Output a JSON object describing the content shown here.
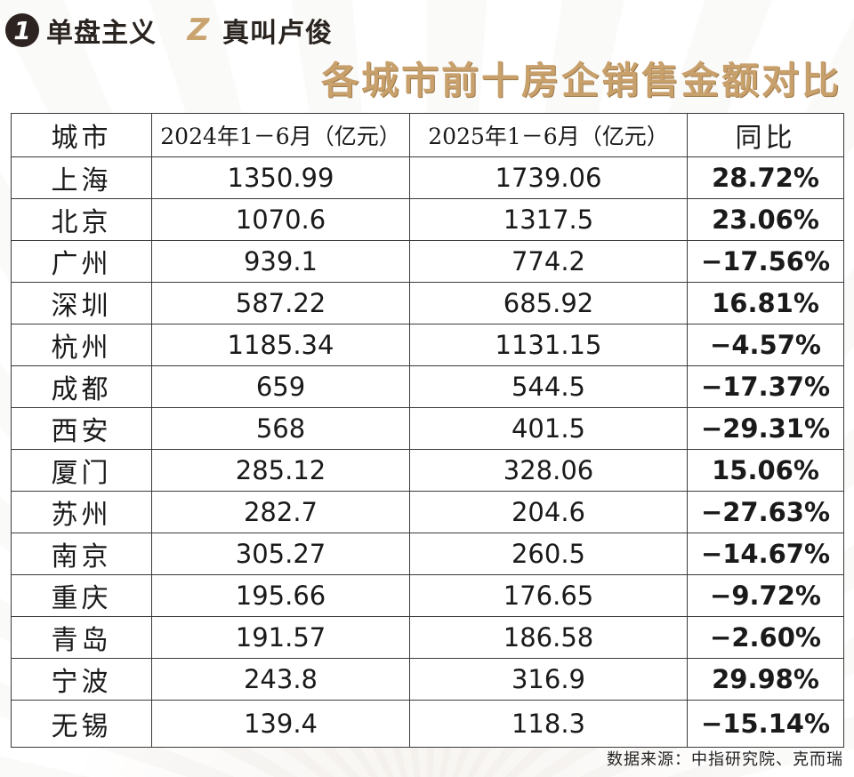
{
  "brand": {
    "logo1": {
      "badge": "1",
      "text": "单盘主义"
    },
    "logo2": {
      "badge": "Z",
      "text": "真叫卢俊"
    }
  },
  "title": "各城市前十房企销售金额对比",
  "table": {
    "headers": [
      "城市",
      "2024年1－6月（亿元）",
      "2025年1－6月（亿元）",
      "同比"
    ],
    "rows": [
      {
        "city": "上海",
        "v2024": "1350.99",
        "v2025": "1739.06",
        "yoy": "28.72%"
      },
      {
        "city": "北京",
        "v2024": "1070.6",
        "v2025": "1317.5",
        "yoy": "23.06%"
      },
      {
        "city": "广州",
        "v2024": "939.1",
        "v2025": "774.2",
        "yoy": "−17.56%"
      },
      {
        "city": "深圳",
        "v2024": "587.22",
        "v2025": "685.92",
        "yoy": "16.81%"
      },
      {
        "city": "杭州",
        "v2024": "1185.34",
        "v2025": "1131.15",
        "yoy": "−4.57%"
      },
      {
        "city": "成都",
        "v2024": "659",
        "v2025": "544.5",
        "yoy": "−17.37%"
      },
      {
        "city": "西安",
        "v2024": "568",
        "v2025": "401.5",
        "yoy": "−29.31%"
      },
      {
        "city": "厦门",
        "v2024": "285.12",
        "v2025": "328.06",
        "yoy": "15.06%"
      },
      {
        "city": "苏州",
        "v2024": "282.7",
        "v2025": "204.6",
        "yoy": "−27.63%"
      },
      {
        "city": "南京",
        "v2024": "305.27",
        "v2025": "260.5",
        "yoy": "−14.67%"
      },
      {
        "city": "重庆",
        "v2024": "195.66",
        "v2025": "176.65",
        "yoy": "−9.72%"
      },
      {
        "city": "青岛",
        "v2024": "191.57",
        "v2025": "186.58",
        "yoy": "−2.60%"
      },
      {
        "city": "宁波",
        "v2024": "243.8",
        "v2025": "316.9",
        "yoy": "29.98%"
      },
      {
        "city": "无锡",
        "v2024": "139.4",
        "v2025": "118.3",
        "yoy": "−15.14%"
      }
    ]
  },
  "source": "数据来源：中指研究院、克而瑞"
}
